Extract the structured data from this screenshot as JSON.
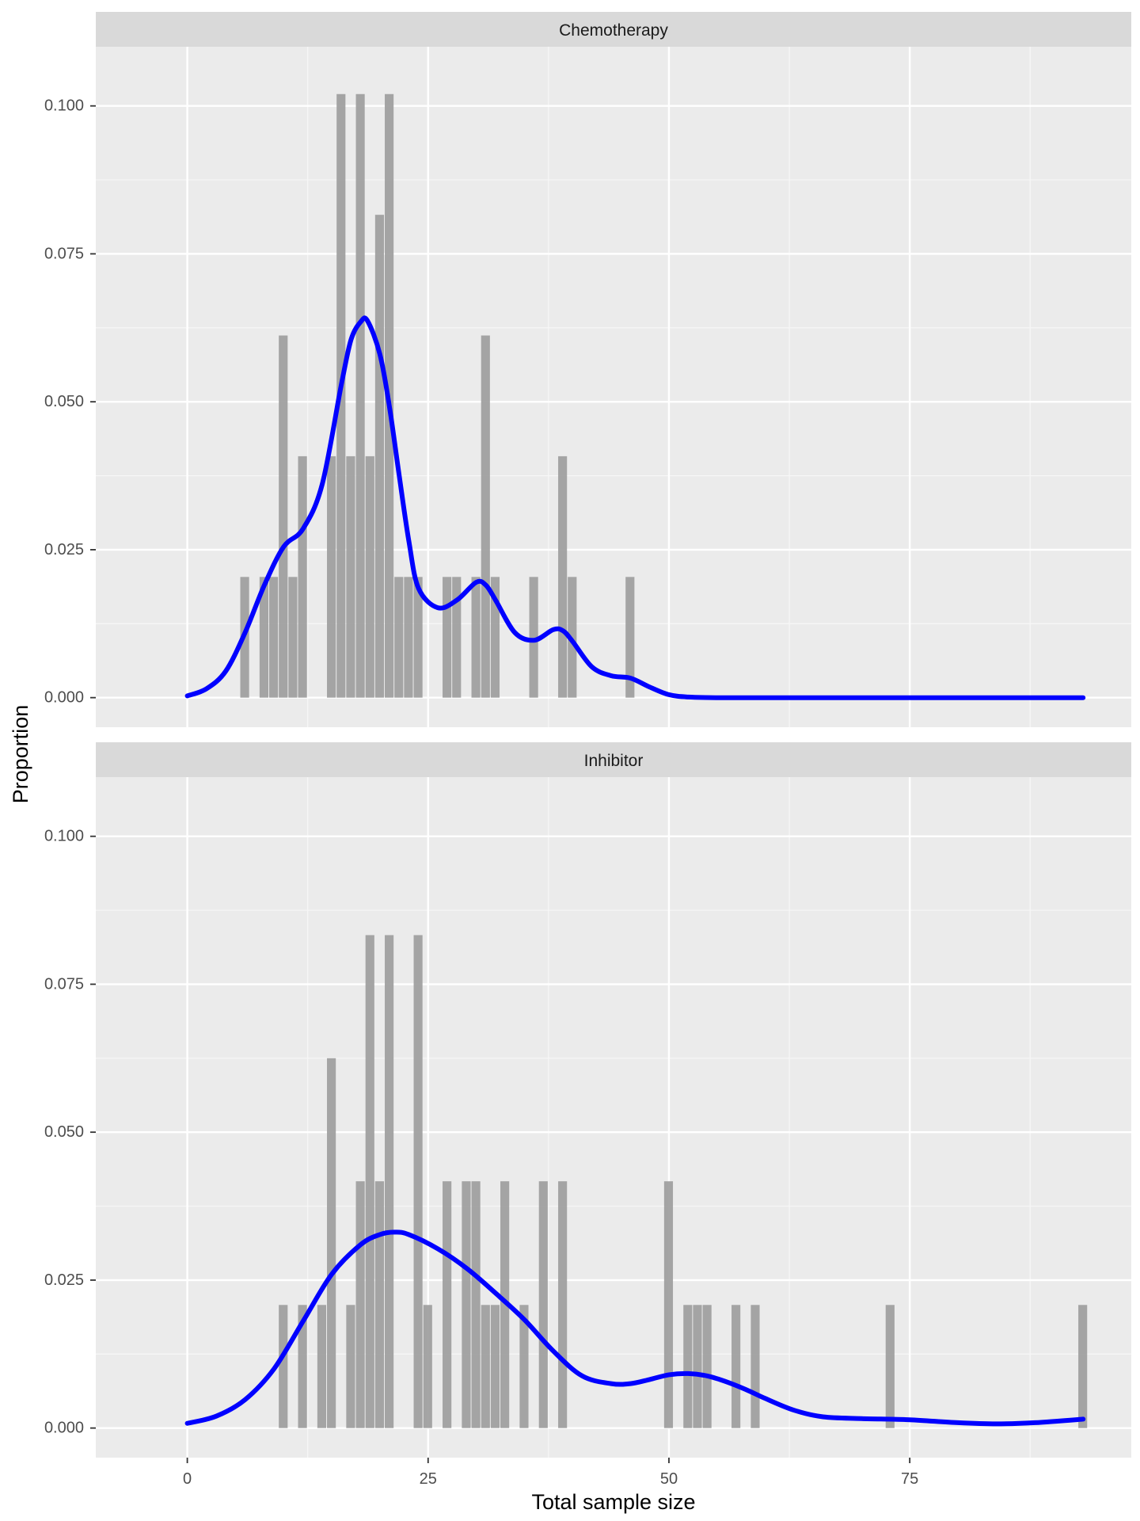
{
  "chart_data": {
    "type": "bar",
    "xlabel": "Total sample size",
    "ylabel": "Proportion",
    "xlim": [
      -9.5,
      98
    ],
    "ylim": [
      -0.005,
      0.11
    ],
    "x_ticks": [
      0,
      25,
      50,
      75
    ],
    "x_minor_ticks": [
      12.5,
      37.5,
      62.5,
      87.5
    ],
    "y_ticks": [
      0.0,
      0.025,
      0.05,
      0.075,
      0.1
    ],
    "y_tick_labels": [
      "0.000",
      "0.025",
      "0.050",
      "0.075",
      "0.100"
    ],
    "y_minor_ticks": [
      0.0125,
      0.0375,
      0.0625,
      0.0875
    ],
    "bin_width": 1,
    "grid": true,
    "colors": {
      "panel_background": "#ebebeb",
      "strip_background": "#d9d9d9",
      "grid": "#ffffff",
      "bars": "#a0a0a0",
      "density_line": "#0000ff"
    },
    "panels": [
      {
        "label": "Chemotherapy",
        "histogram": {
          "x": [
            6,
            8,
            9,
            10,
            11,
            12,
            15,
            16,
            17,
            18,
            19,
            20,
            21,
            22,
            23,
            24,
            27,
            28,
            30,
            31,
            32,
            36,
            39,
            40,
            46
          ],
          "proportion": [
            0.0204,
            0.0204,
            0.0204,
            0.0612,
            0.0204,
            0.0408,
            0.0408,
            0.102,
            0.0408,
            0.102,
            0.0408,
            0.0816,
            0.102,
            0.0204,
            0.0204,
            0.0204,
            0.0204,
            0.0204,
            0.0204,
            0.0612,
            0.0204,
            0.0204,
            0.0408,
            0.0204,
            0.0204
          ]
        },
        "density": {
          "x": [
            0,
            2,
            4,
            6,
            8,
            10,
            12,
            14,
            16,
            17,
            18,
            18.7,
            20,
            21,
            22,
            23,
            24,
            26,
            28,
            30,
            31,
            32,
            34,
            36,
            38,
            39,
            40,
            42,
            44,
            46,
            48,
            50,
            52,
            55,
            60,
            70,
            80,
            93
          ],
          "y": [
            0.0003,
            0.0015,
            0.0045,
            0.011,
            0.019,
            0.0255,
            0.0285,
            0.036,
            0.053,
            0.0605,
            0.0635,
            0.0637,
            0.058,
            0.049,
            0.0375,
            0.0265,
            0.0185,
            0.0152,
            0.0165,
            0.0195,
            0.019,
            0.0165,
            0.011,
            0.0097,
            0.0115,
            0.0113,
            0.0095,
            0.0052,
            0.0037,
            0.0033,
            0.0018,
            0.0005,
            0.0001,
            0,
            0,
            0,
            0,
            0
          ]
        }
      },
      {
        "label": "Inhibitor",
        "histogram": {
          "x": [
            10,
            12,
            14,
            15,
            17,
            18,
            19,
            20,
            21,
            24,
            25,
            27,
            29,
            30,
            31,
            32,
            33,
            35,
            37,
            39,
            50,
            52,
            53,
            54,
            57,
            59,
            73,
            93
          ],
          "proportion": [
            0.0208,
            0.0208,
            0.0208,
            0.0625,
            0.0208,
            0.0417,
            0.0833,
            0.0417,
            0.0833,
            0.0833,
            0.0208,
            0.0417,
            0.0417,
            0.0417,
            0.0208,
            0.0208,
            0.0417,
            0.0208,
            0.0417,
            0.0417,
            0.0417,
            0.0208,
            0.0208,
            0.0208,
            0.0208,
            0.0208,
            0.0208,
            0.0208
          ]
        },
        "density": {
          "x": [
            0,
            3,
            6,
            9,
            12,
            15,
            18,
            20,
            21.5,
            23,
            26,
            29,
            32,
            35,
            38,
            41,
            44,
            46,
            48,
            50,
            52,
            54,
            56,
            58,
            60,
            63,
            66,
            70,
            75,
            80,
            84,
            88,
            93
          ],
          "y": [
            0.0008,
            0.002,
            0.0048,
            0.01,
            0.018,
            0.026,
            0.031,
            0.0327,
            0.0331,
            0.0327,
            0.0303,
            0.027,
            0.0228,
            0.0183,
            0.013,
            0.0088,
            0.0075,
            0.0075,
            0.0082,
            0.009,
            0.0092,
            0.0088,
            0.0078,
            0.0065,
            0.005,
            0.003,
            0.0019,
            0.0016,
            0.0014,
            0.0009,
            0.0007,
            0.0009,
            0.0015
          ]
        }
      }
    ]
  }
}
